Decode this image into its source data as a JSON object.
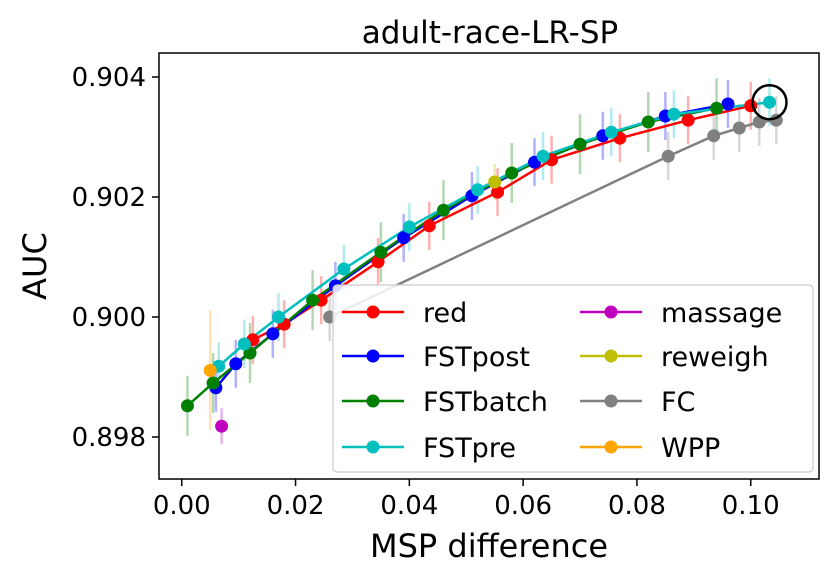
{
  "chart_data": {
    "type": "line",
    "title": "adult-race-LR-SP",
    "xlabel": "MSP difference",
    "ylabel": "AUC",
    "xlim": [
      -0.004,
      0.112
    ],
    "ylim": [
      0.8973,
      0.9044
    ],
    "xticks": [
      {
        "value": 0.0,
        "label": "0.00"
      },
      {
        "value": 0.02,
        "label": "0.02"
      },
      {
        "value": 0.04,
        "label": "0.04"
      },
      {
        "value": 0.06,
        "label": "0.06"
      },
      {
        "value": 0.08,
        "label": "0.08"
      },
      {
        "value": 0.1,
        "label": "0.10"
      }
    ],
    "yticks": [
      {
        "value": 0.898,
        "label": "0.898"
      },
      {
        "value": 0.9,
        "label": "0.900"
      },
      {
        "value": 0.902,
        "label": "0.902"
      },
      {
        "value": 0.904,
        "label": "0.904"
      }
    ],
    "highlight": {
      "x": 0.1033,
      "y": 0.90358,
      "label": "circled endpoint"
    },
    "series": [
      {
        "name": "red",
        "color": "#ff0000",
        "x": [
          0.0125,
          0.018,
          0.0245,
          0.0345,
          0.0435,
          0.0555,
          0.065,
          0.077,
          0.089,
          0.1
        ],
        "y": [
          0.89962,
          0.89988,
          0.90028,
          0.90092,
          0.90152,
          0.90208,
          0.90262,
          0.90298,
          0.90328,
          0.90352
        ],
        "yerr": [
          0.0004,
          0.0004,
          0.0004,
          0.0004,
          0.0004,
          0.0004,
          0.0004,
          0.0004,
          0.0004,
          0.0004
        ]
      },
      {
        "name": "FSTpost",
        "color": "#0000ff",
        "x": [
          0.006,
          0.0095,
          0.016,
          0.027,
          0.039,
          0.051,
          0.062,
          0.074,
          0.085,
          0.096
        ],
        "y": [
          0.89882,
          0.89922,
          0.89972,
          0.90052,
          0.90132,
          0.90202,
          0.90258,
          0.90302,
          0.90335,
          0.90355
        ],
        "yerr": [
          0.0004,
          0.0004,
          0.0004,
          0.0004,
          0.0004,
          0.0004,
          0.0004,
          0.0004,
          0.0004,
          0.0004
        ]
      },
      {
        "name": "FSTbatch",
        "color": "#008000",
        "x": [
          0.001,
          0.0055,
          0.012,
          0.023,
          0.035,
          0.046,
          0.058,
          0.07,
          0.082,
          0.094
        ],
        "y": [
          0.89852,
          0.8989,
          0.8994,
          0.90028,
          0.90108,
          0.90178,
          0.9024,
          0.90288,
          0.90325,
          0.90348
        ],
        "yerr": [
          0.0005,
          0.0005,
          0.0005,
          0.0005,
          0.0005,
          0.0005,
          0.0005,
          0.0005,
          0.0005,
          0.0005
        ]
      },
      {
        "name": "FSTpre",
        "color": "#00bfbf",
        "x": [
          0.0065,
          0.011,
          0.017,
          0.0285,
          0.04,
          0.052,
          0.0635,
          0.0755,
          0.0865,
          0.1033
        ],
        "y": [
          0.89918,
          0.89955,
          0.9,
          0.9008,
          0.9015,
          0.90212,
          0.90268,
          0.90308,
          0.90338,
          0.90358
        ],
        "yerr": [
          0.0004,
          0.0004,
          0.0004,
          0.0004,
          0.0004,
          0.0004,
          0.0004,
          0.0004,
          0.0004,
          0.0004
        ]
      },
      {
        "name": "massage",
        "color": "#bf00bf",
        "x": [
          0.007
        ],
        "y": [
          0.89818
        ],
        "yerr": [
          0.0003
        ]
      },
      {
        "name": "reweigh",
        "color": "#bfbf00",
        "x": [
          0.055
        ],
        "y": [
          0.90225
        ],
        "yerr": [
          0.0003
        ]
      },
      {
        "name": "FC",
        "color": "#808080",
        "x": [
          0.026,
          0.0855,
          0.0935,
          0.098,
          0.1015,
          0.1045
        ],
        "y": [
          0.9,
          0.90268,
          0.90302,
          0.90315,
          0.90325,
          0.90328
        ],
        "yerr": [
          0.0004,
          0.0004,
          0.0004,
          0.0004,
          0.0004,
          0.0004
        ]
      },
      {
        "name": "WPP",
        "color": "#ffa500",
        "x": [
          0.005
        ],
        "y": [
          0.89911
        ],
        "yerr": [
          0.001
        ]
      }
    ],
    "legend_position": "lower-right"
  }
}
